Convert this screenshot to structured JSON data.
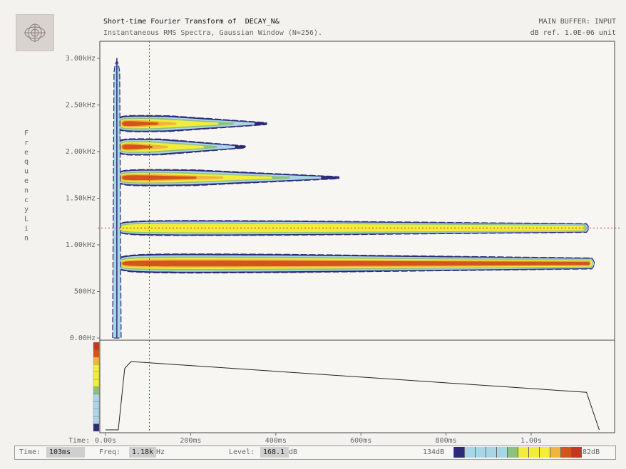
{
  "header": {
    "title": "Short-time Fourier Transform of",
    "signal_name": "DECAY_N&",
    "subtitle": "Instantaneous RMS Spectra, Gaussian Window (N=256).",
    "buffer": "MAIN BUFFER: INPUT",
    "reference": "dB ref. 1.0E-06 unit"
  },
  "chart_data": {
    "type": "heatmap",
    "title": "Short-time Fourier Transform of DECAY_N&",
    "xlabel": "Time",
    "ylabel": "Frequency Lin",
    "x_ticks": [
      "0.00s",
      "200ms",
      "400ms",
      "600ms",
      "800ms",
      "1.00s"
    ],
    "x_tick_values": [
      0,
      0.2,
      0.4,
      0.6,
      0.8,
      1.0
    ],
    "xlim": [
      0,
      1.16
    ],
    "y_ticks": [
      "0.00Hz",
      "500Hz",
      "1.00kHz",
      "1.50kHz",
      "2.00kHz",
      "2.50kHz",
      "3.00kHz"
    ],
    "y_tick_values": [
      0,
      500,
      1000,
      1500,
      2000,
      2500,
      3000
    ],
    "ylim": [
      0,
      3200
    ],
    "cursor": {
      "time_s": 0.103,
      "freq_hz": 1180
    },
    "partials": [
      {
        "freq_hz": 800,
        "onset_s": 0.04,
        "end_s": 1.155,
        "peak_level": "high"
      },
      {
        "freq_hz": 1180,
        "onset_s": 0.04,
        "end_s": 1.14,
        "peak_level": "medium"
      },
      {
        "freq_hz": 1720,
        "onset_s": 0.04,
        "end_s": 0.55,
        "peak_level": "high"
      },
      {
        "freq_hz": 2050,
        "onset_s": 0.04,
        "end_s": 0.33,
        "peak_level": "medium-high"
      },
      {
        "freq_hz": 2300,
        "onset_s": 0.04,
        "end_s": 0.38,
        "peak_level": "medium-high"
      }
    ],
    "transient": {
      "time_s": 0.04,
      "fmin_hz": 0,
      "fmax_hz": 3080
    },
    "level_trace": {
      "description_points": [
        [
          0.0,
          0.0
        ],
        [
          0.03,
          0.0
        ],
        [
          0.045,
          0.9
        ],
        [
          0.06,
          1.0
        ],
        [
          1.13,
          0.55
        ],
        [
          1.16,
          0.0
        ]
      ]
    },
    "colormap": {
      "min_label": "134dB",
      "max_label": "182dB",
      "min_db": 134,
      "max_db": 182,
      "colors": [
        "#2e2a7a",
        "#a9d6e6",
        "#a9d6e6",
        "#a9d6e6",
        "#a9d6e6",
        "#8ec07e",
        "#f2ec3a",
        "#f2ec3a",
        "#f2ec3a",
        "#f2b43a",
        "#d4541e",
        "#c23a1a"
      ]
    }
  },
  "status": {
    "time_label": "Time:",
    "time_value": "103ms",
    "freq_label": "Freq:",
    "freq_value": "1.18k",
    "freq_unit": "Hz",
    "level_label": "Level:",
    "level_value": "168.1",
    "level_unit": "dB",
    "scale_min": "134dB",
    "scale_max": "182dB"
  },
  "axis_time_label": "Time:"
}
